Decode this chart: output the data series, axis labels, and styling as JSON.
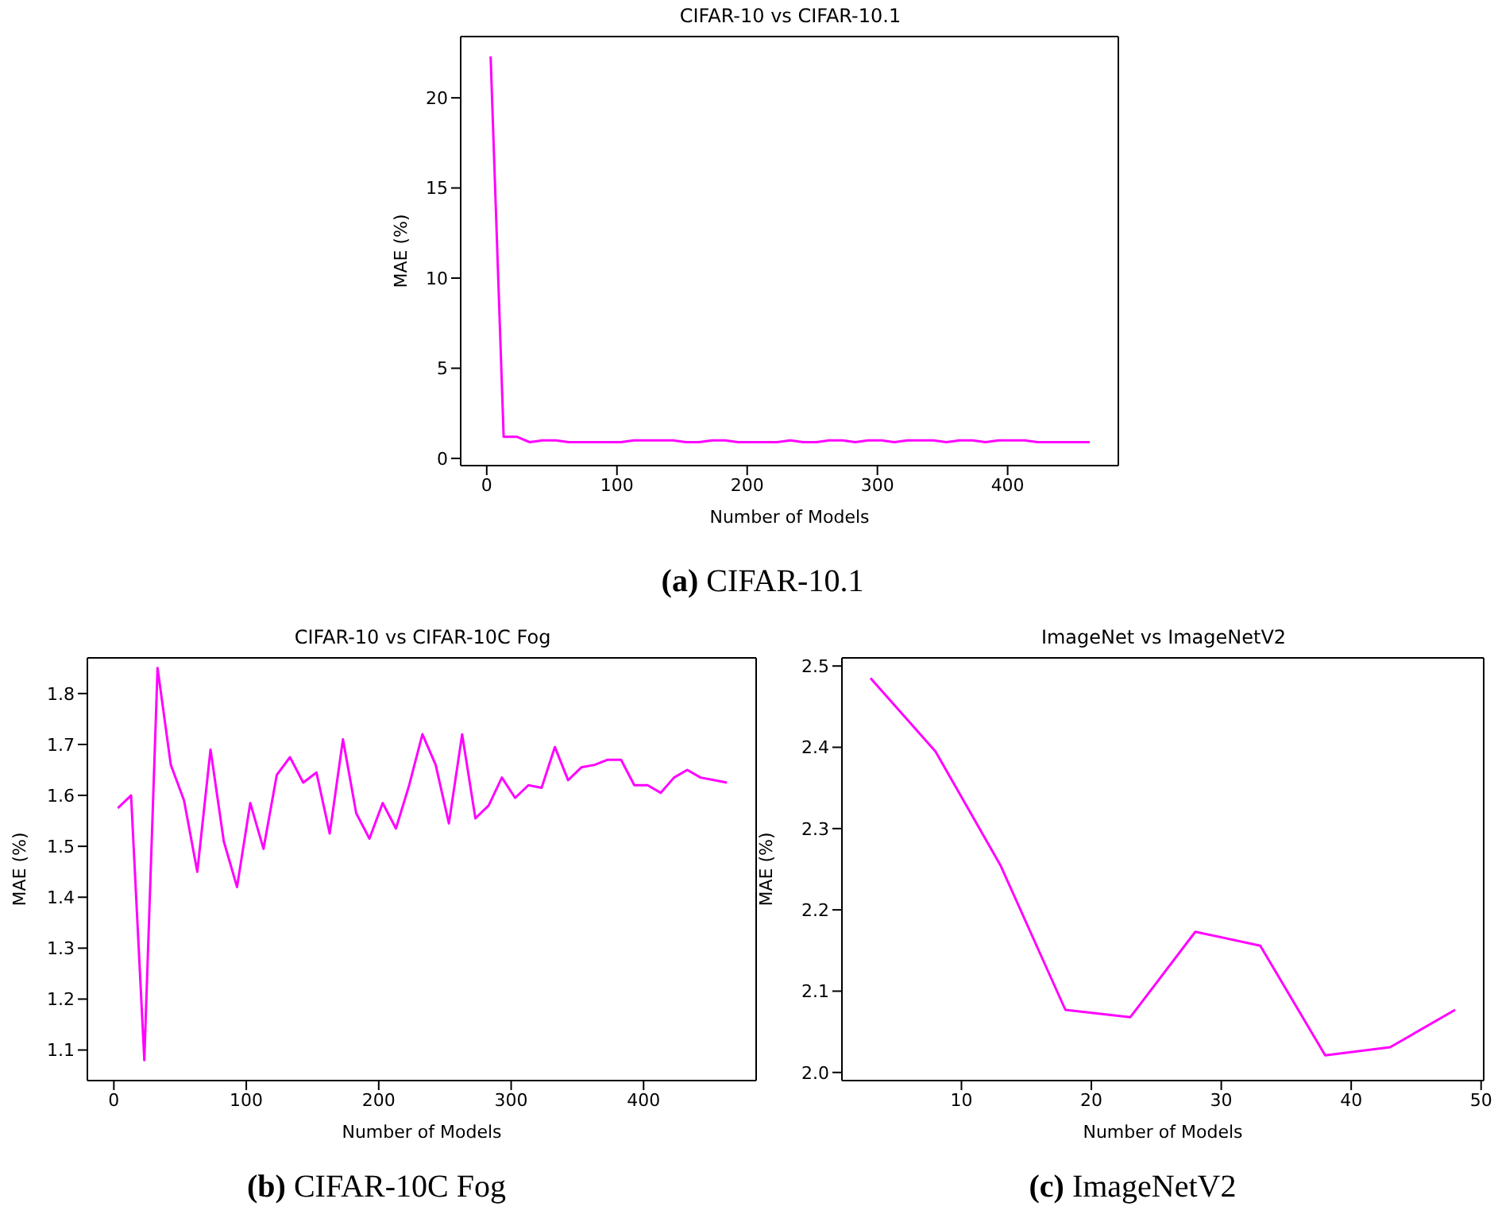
{
  "chart_data": [
    {
      "type": "line",
      "title": "CIFAR-10 vs CIFAR-10.1",
      "xlabel": "Number of Models",
      "ylabel": "MAE (%)",
      "x": [
        3,
        13,
        23,
        33,
        43,
        53,
        63,
        73,
        83,
        93,
        103,
        113,
        123,
        133,
        143,
        153,
        163,
        173,
        183,
        193,
        203,
        213,
        223,
        233,
        243,
        253,
        263,
        273,
        283,
        293,
        303,
        313,
        323,
        333,
        343,
        353,
        363,
        373,
        383,
        393,
        403,
        413,
        423,
        433,
        443,
        453,
        463
      ],
      "series": [
        {
          "color": "#ff00ff",
          "values": [
            22.3,
            1.2,
            1.2,
            0.9,
            1.0,
            1.0,
            0.9,
            0.9,
            0.9,
            0.9,
            0.9,
            1.0,
            1.0,
            1.0,
            1.0,
            0.9,
            0.9,
            1.0,
            1.0,
            0.9,
            0.9,
            0.9,
            0.9,
            1.0,
            0.9,
            0.9,
            1.0,
            1.0,
            0.9,
            1.0,
            1.0,
            0.9,
            1.0,
            1.0,
            1.0,
            0.9,
            1.0,
            1.0,
            0.9,
            1.0,
            1.0,
            1.0,
            0.9,
            0.9,
            0.9,
            0.9,
            0.9
          ]
        }
      ],
      "xlim": [
        -20,
        485
      ],
      "ylim": [
        -0.4,
        23.4
      ],
      "xticks": [
        0,
        100,
        200,
        300,
        400
      ],
      "yticks": [
        0,
        5,
        10,
        15,
        20
      ],
      "annotations": [
        "(a) CIFAR-10.1"
      ]
    },
    {
      "type": "line",
      "title": "CIFAR-10 vs CIFAR-10C Fog",
      "xlabel": "Number of Models",
      "ylabel": "MAE (%)",
      "x": [
        3,
        13,
        23,
        33,
        43,
        53,
        63,
        73,
        83,
        93,
        103,
        113,
        123,
        133,
        143,
        153,
        163,
        173,
        183,
        193,
        203,
        213,
        223,
        233,
        243,
        253,
        263,
        273,
        283,
        293,
        303,
        313,
        323,
        333,
        343,
        353,
        363,
        373,
        383,
        393,
        403,
        413,
        423,
        433,
        443,
        453,
        463
      ],
      "series": [
        {
          "color": "#ff00ff",
          "values": [
            1.575,
            1.6,
            1.08,
            1.85,
            1.66,
            1.59,
            1.45,
            1.69,
            1.51,
            1.42,
            1.585,
            1.495,
            1.64,
            1.675,
            1.625,
            1.645,
            1.525,
            1.71,
            1.565,
            1.515,
            1.585,
            1.535,
            1.62,
            1.72,
            1.66,
            1.545,
            1.72,
            1.555,
            1.58,
            1.635,
            1.595,
            1.62,
            1.615,
            1.695,
            1.63,
            1.655,
            1.66,
            1.67,
            1.67,
            1.62,
            1.62,
            1.605,
            1.635,
            1.65,
            1.635,
            1.63,
            1.625
          ]
        }
      ],
      "xlim": [
        -20,
        485
      ],
      "ylim": [
        1.04,
        1.87
      ],
      "xticks": [
        0,
        100,
        200,
        300,
        400
      ],
      "yticks": [
        1.1,
        1.2,
        1.3,
        1.4,
        1.5,
        1.6,
        1.7,
        1.8
      ],
      "annotations": [
        "(b) CIFAR-10C Fog"
      ]
    },
    {
      "type": "line",
      "title": "ImageNet vs ImageNetV2",
      "xlabel": "Number of Models",
      "ylabel": "MAE (%)",
      "x": [
        3,
        8,
        13,
        18,
        23,
        28,
        33,
        38,
        43,
        48
      ],
      "series": [
        {
          "color": "#ff00ff",
          "values": [
            2.485,
            2.395,
            2.255,
            2.077,
            2.068,
            2.173,
            2.156,
            2.021,
            2.031,
            2.077
          ]
        }
      ],
      "xlim": [
        0.8,
        50.2
      ],
      "ylim": [
        1.99,
        2.51
      ],
      "xticks": [
        10,
        20,
        30,
        40,
        50
      ],
      "yticks": [
        {
          "value": 2,
          "label": "2.0"
        },
        2.1,
        2.2,
        2.3,
        2.4,
        {
          "value": 2.5,
          "label": "2.5"
        }
      ],
      "annotations": [
        "(c) ImageNetV2"
      ]
    }
  ]
}
